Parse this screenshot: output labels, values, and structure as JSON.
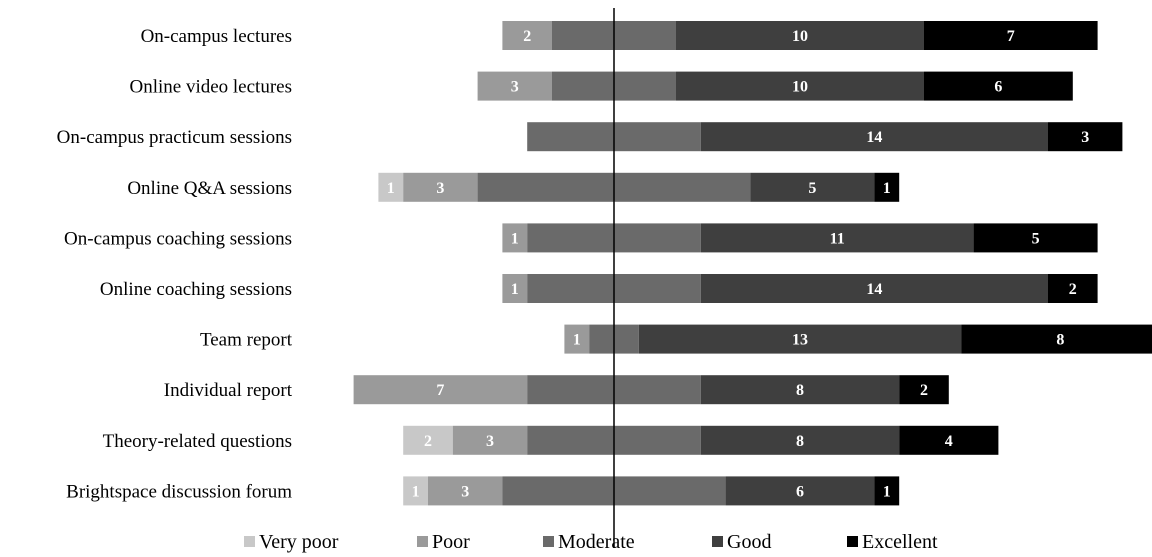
{
  "chart_data": {
    "type": "bar",
    "orientation": "horizontal",
    "stacking": "diverging",
    "title": "",
    "xlabel": "",
    "ylabel": "",
    "grid": false,
    "legend_position": "bottom",
    "categories": [
      "On-campus lectures",
      "Online video lectures",
      "On-campus practicum sessions",
      "Online Q&A sessions",
      "On-campus coaching sessions",
      "Online coaching sessions",
      "Team report",
      "Individual report",
      "Theory-related questions",
      "Brightspace discussion forum"
    ],
    "series": [
      {
        "name": "Very poor",
        "color": "#c8c8c8",
        "values": [
          0,
          0,
          0,
          1,
          0,
          0,
          0,
          0,
          2,
          1
        ]
      },
      {
        "name": "Poor",
        "color": "#9a9a9a",
        "values": [
          2,
          3,
          0,
          3,
          1,
          1,
          1,
          7,
          3,
          3
        ]
      },
      {
        "name": "Moderate",
        "color": "#6a6a6a",
        "values": [
          5,
          5,
          7,
          11,
          7,
          7,
          2,
          7,
          7,
          9
        ]
      },
      {
        "name": "Good",
        "color": "#3f3f3f",
        "values": [
          10,
          10,
          14,
          5,
          11,
          14,
          13,
          8,
          8,
          6
        ]
      },
      {
        "name": "Excellent",
        "color": "#000000",
        "values": [
          7,
          6,
          3,
          1,
          5,
          2,
          8,
          2,
          4,
          1
        ]
      }
    ],
    "label_series": [
      "Very poor",
      "Poor",
      "Good",
      "Excellent"
    ]
  }
}
